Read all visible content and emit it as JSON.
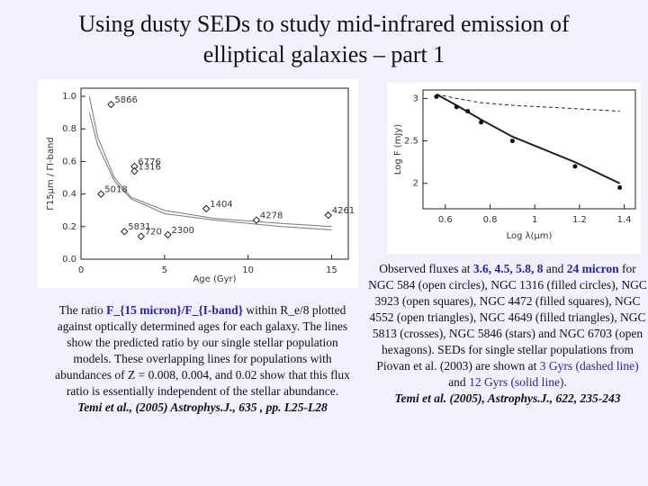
{
  "title": [
    "Using dusty SEDs to study mid-infrared emission of",
    "elliptical galaxies – part 1"
  ],
  "chart_data": [
    {
      "type": "scatter",
      "x_label": "Age (Gyr)",
      "y_label": "Γ15μm / ΓI-band",
      "xlim": [
        0,
        16
      ],
      "ylim": [
        0,
        1.05
      ],
      "xticks": [
        0,
        5,
        10,
        15
      ],
      "yticks": [
        {
          "value": 0,
          "label": "0.0"
        },
        0.2,
        0.4,
        0.6,
        0.8,
        {
          "value": 1,
          "label": "1.0"
        }
      ],
      "x": [
        1.8,
        3.2,
        3.2,
        1.2,
        7.5,
        2.6,
        3.6,
        5.2,
        10.5,
        14.8
      ],
      "values": [
        0.95,
        0.57,
        0.54,
        0.4,
        0.31,
        0.17,
        0.14,
        0.15,
        0.24,
        0.27
      ],
      "labels": [
        "5866",
        "6776",
        "1316",
        "5018",
        "1404",
        "5831",
        "720",
        "2300",
        "4278",
        "4261"
      ],
      "lines": [
        {
          "x": [
            0.5,
            1,
            2,
            3,
            5,
            8,
            12,
            15
          ],
          "values": [
            1.0,
            0.75,
            0.5,
            0.38,
            0.3,
            0.25,
            0.22,
            0.2
          ]
        },
        {
          "x": [
            0.5,
            1,
            2,
            3,
            5,
            8,
            12,
            15
          ],
          "values": [
            0.9,
            0.7,
            0.48,
            0.37,
            0.28,
            0.24,
            0.2,
            0.18
          ]
        }
      ]
    },
    {
      "type": "line",
      "x_label": "Log λ(μm)",
      "y_label": "Log F (mJy)",
      "xlim": [
        0.5,
        1.45
      ],
      "ylim": [
        1.7,
        3.1
      ],
      "xticks": [
        0.6,
        0.8,
        1,
        1.2,
        1.4
      ],
      "yticks": [
        2,
        2.5,
        3
      ],
      "lines": [
        {
          "style": "dashed",
          "x": [
            0.56,
            0.65,
            0.76,
            0.9,
            1.18,
            1.38
          ],
          "values": [
            3.05,
            3.0,
            2.95,
            2.92,
            2.88,
            2.85
          ]
        },
        {
          "style": "solid",
          "x": [
            0.56,
            0.65,
            0.76,
            0.9,
            1.18,
            1.38
          ],
          "values": [
            3.05,
            2.92,
            2.75,
            2.55,
            2.25,
            2.0
          ]
        }
      ],
      "points": {
        "x": [
          0.56,
          0.65,
          0.7,
          0.76,
          0.9,
          1.18,
          1.38
        ],
        "values": [
          3.02,
          2.9,
          2.85,
          2.72,
          2.5,
          2.2,
          1.95
        ]
      }
    }
  ],
  "caption_left": {
    "before": "The ratio ",
    "bold": "F_{15 micron}/F_{I-band}",
    "after": " within R_e/8 plotted against optically determined ages for each galaxy. The lines show the predicted ratio by our single stellar population models. These overlapping lines for populations with abundances of Z = 0.008, 0.004, and 0.02 show that this flux ratio is essentially independent of the stellar abundance.",
    "citation": "Temi et al., (2005) Astrophys.J., 635 , pp. L25-L28"
  },
  "caption_right": {
    "p1": "Observed fluxes at ",
    "b1": "3.6, 4.5, 5.8, 8",
    "p2": " and ",
    "b2": "24 micron",
    "p3": " for NGC 584 (open circles), NGC 1316 (filled circles), NGC 3923 (open squares), NGC 4472 (filled squares), NGC 4552 (open triangles), NGC 4649 (filled triangles), NGC 5813 (crosses), NGC 5846 (stars) and NGC 6703 (open hexagons). SEDs for single stellar populations from Piovan et al. (2003) are shown at ",
    "c1": "3 Gyrs (dashed line)",
    "p4": " and ",
    "c2": "12 Gyrs (solid line).",
    "citation": "Temi et al. (2005), Astrophys.J., 622, 235-243"
  }
}
